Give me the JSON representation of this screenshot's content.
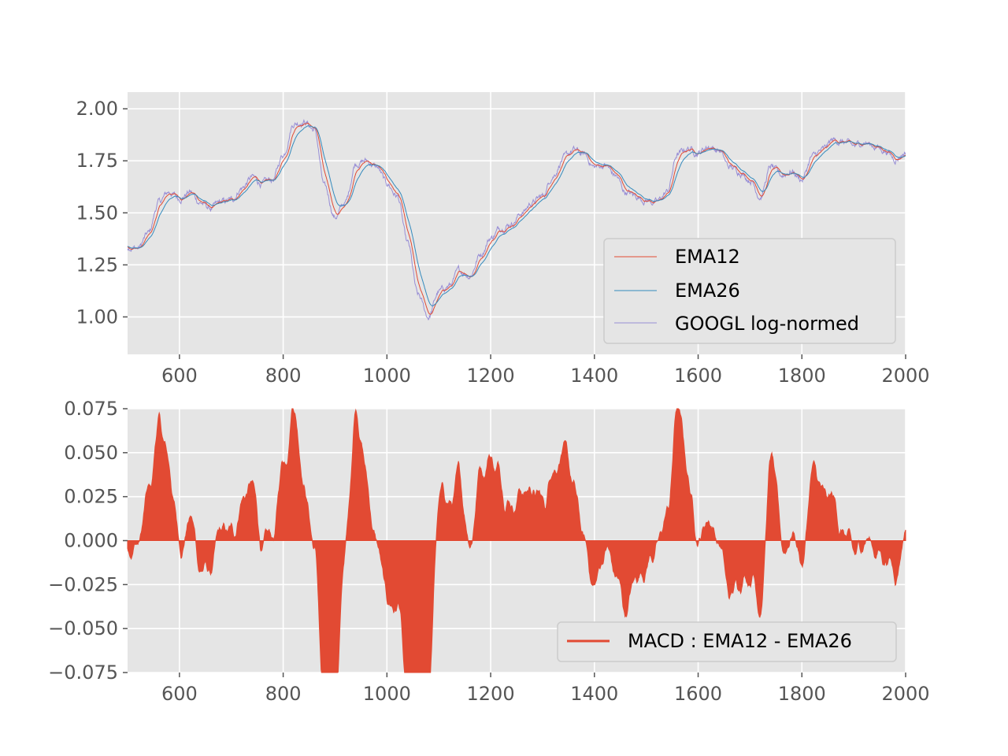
{
  "chart_data": [
    {
      "type": "line",
      "xlim": [
        500,
        2000
      ],
      "ylim": [
        0.82,
        2.08
      ],
      "xticks": [
        600,
        800,
        1000,
        1200,
        1400,
        1600,
        1800,
        2000
      ],
      "xtick_labels": [
        "600",
        "800",
        "1000",
        "1200",
        "1400",
        "1600",
        "1800",
        "2000"
      ],
      "yticks": [
        1.0,
        1.25,
        1.5,
        1.75,
        2.0
      ],
      "ytick_labels": [
        "1.00",
        "1.25",
        "1.50",
        "1.75",
        "2.00"
      ],
      "grid": true,
      "legend_position": "lower-right",
      "series_base": {
        "x": [
          500,
          520,
          540,
          560,
          580,
          600,
          620,
          640,
          660,
          680,
          700,
          720,
          740,
          760,
          780,
          800,
          820,
          840,
          860,
          880,
          900,
          920,
          940,
          960,
          980,
          1000,
          1020,
          1040,
          1060,
          1080,
          1100,
          1120,
          1140,
          1160,
          1180,
          1200,
          1220,
          1240,
          1260,
          1280,
          1300,
          1320,
          1340,
          1360,
          1380,
          1400,
          1420,
          1440,
          1460,
          1480,
          1500,
          1520,
          1540,
          1560,
          1580,
          1600,
          1620,
          1640,
          1660,
          1680,
          1700,
          1720,
          1740,
          1760,
          1780,
          1800,
          1820,
          1840,
          1860,
          1880,
          1900,
          1920,
          1940,
          1960,
          1980,
          2000
        ],
        "y": [
          1.34,
          1.33,
          1.4,
          1.55,
          1.6,
          1.57,
          1.6,
          1.55,
          1.52,
          1.55,
          1.56,
          1.62,
          1.67,
          1.64,
          1.66,
          1.78,
          1.93,
          1.94,
          1.9,
          1.62,
          1.48,
          1.55,
          1.74,
          1.75,
          1.72,
          1.64,
          1.58,
          1.35,
          1.1,
          1.0,
          1.12,
          1.15,
          1.22,
          1.2,
          1.3,
          1.38,
          1.43,
          1.45,
          1.5,
          1.55,
          1.58,
          1.68,
          1.76,
          1.8,
          1.78,
          1.72,
          1.73,
          1.68,
          1.6,
          1.58,
          1.56,
          1.55,
          1.6,
          1.78,
          1.81,
          1.79,
          1.82,
          1.8,
          1.72,
          1.7,
          1.66,
          1.58,
          1.72,
          1.68,
          1.7,
          1.66,
          1.77,
          1.8,
          1.85,
          1.84,
          1.82,
          1.84,
          1.82,
          1.8,
          1.76,
          1.79
        ]
      },
      "series": [
        {
          "name": "EMA12",
          "color": "#E24A33",
          "span": 12
        },
        {
          "name": "EMA26",
          "color": "#348ABD",
          "span": 26
        },
        {
          "name": "GOOGL log-normed",
          "color": "#988ED5",
          "span": 1
        }
      ]
    },
    {
      "type": "area",
      "xlim": [
        500,
        2000
      ],
      "ylim": [
        -0.075,
        0.075
      ],
      "xticks": [
        600,
        800,
        1000,
        1200,
        1400,
        1600,
        1800,
        2000
      ],
      "xtick_labels": [
        "600",
        "800",
        "1000",
        "1200",
        "1400",
        "1600",
        "1800",
        "2000"
      ],
      "yticks": [
        -0.075,
        -0.05,
        -0.025,
        0.0,
        0.025,
        0.05,
        0.075
      ],
      "ytick_labels": [
        "−0.075",
        "−0.050",
        "−0.025",
        "0.000",
        "0.025",
        "0.050",
        "0.075"
      ],
      "grid": true,
      "legend_position": "lower-right",
      "series": [
        {
          "name": "MACD : EMA12 - EMA26",
          "color": "#E24A33"
        }
      ]
    }
  ]
}
